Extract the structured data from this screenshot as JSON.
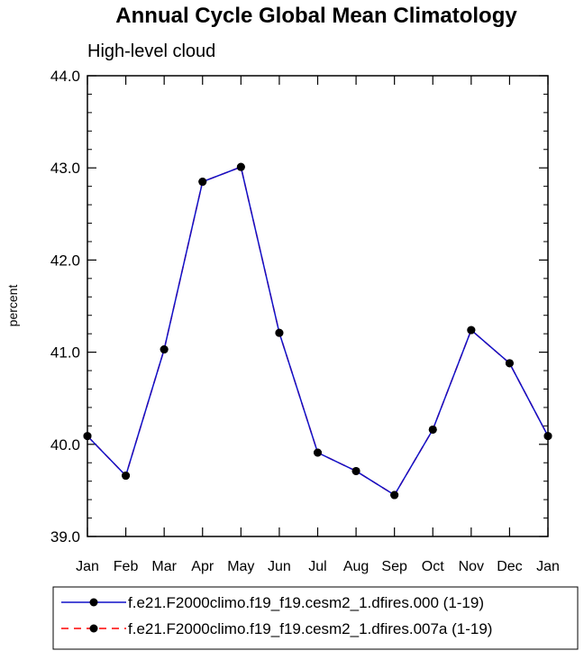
{
  "chart_data": {
    "type": "line",
    "title": "Annual Cycle Global Mean Climatology",
    "subtitle": "High-level cloud",
    "xlabel": "",
    "ylabel": "percent",
    "categories": [
      "Jan",
      "Feb",
      "Mar",
      "Apr",
      "May",
      "Jun",
      "Jul",
      "Aug",
      "Sep",
      "Oct",
      "Nov",
      "Dec",
      "Jan"
    ],
    "ylim": [
      39.0,
      44.0
    ],
    "yticks": [
      "39.0",
      "40.0",
      "41.0",
      "42.0",
      "43.0",
      "44.0"
    ],
    "y_minor_step": 0.2,
    "grid": false,
    "legend_position": "bottom",
    "series": [
      {
        "name": "f.e21.F2000climo.f19_f19.cesm2_1.dfires.000 (1-19)",
        "color": "#1010c8",
        "dash": "solid",
        "marker": "filled-circle",
        "values": [
          40.09,
          39.66,
          41.03,
          42.85,
          43.01,
          41.21,
          39.91,
          39.71,
          39.45,
          40.16,
          41.24,
          40.88,
          40.09
        ]
      },
      {
        "name": "f.e21.F2000climo.f19_f19.cesm2_1.dfires.007a (1-19)",
        "color": "#ff0000",
        "dash": "dashed",
        "marker": "filled-circle",
        "values": [
          40.09,
          39.66,
          41.03,
          42.85,
          43.01,
          41.21,
          39.91,
          39.71,
          39.45,
          40.16,
          41.24,
          40.88,
          40.09
        ]
      }
    ]
  }
}
